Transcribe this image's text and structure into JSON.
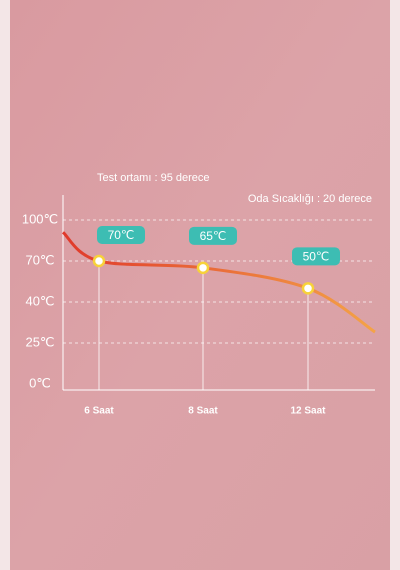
{
  "chart_data": {
    "type": "line",
    "title": "Test ortamı : 95 derece",
    "subtitle": "Oda Sıcaklığı : 20 derece",
    "categories": [
      null,
      "6 Saat",
      "8 Saat",
      "12 Saat",
      null
    ],
    "series": [
      {
        "colors": [
          "#e0392b",
          "#f4a347"
        ],
        "values": [
          91,
          70,
          65,
          50,
          29
        ],
        "value_labels": [
          null,
          "70℃",
          "65℃",
          "50℃",
          null
        ]
      }
    ],
    "yticks": [
      {
        "value": 100,
        "label": "100℃"
      },
      {
        "value": 70,
        "label": "70℃"
      },
      {
        "value": 40,
        "label": "40℃"
      },
      {
        "value": 25,
        "label": "25℃"
      },
      {
        "value": 0,
        "label": "0℃"
      }
    ],
    "grid": true
  }
}
